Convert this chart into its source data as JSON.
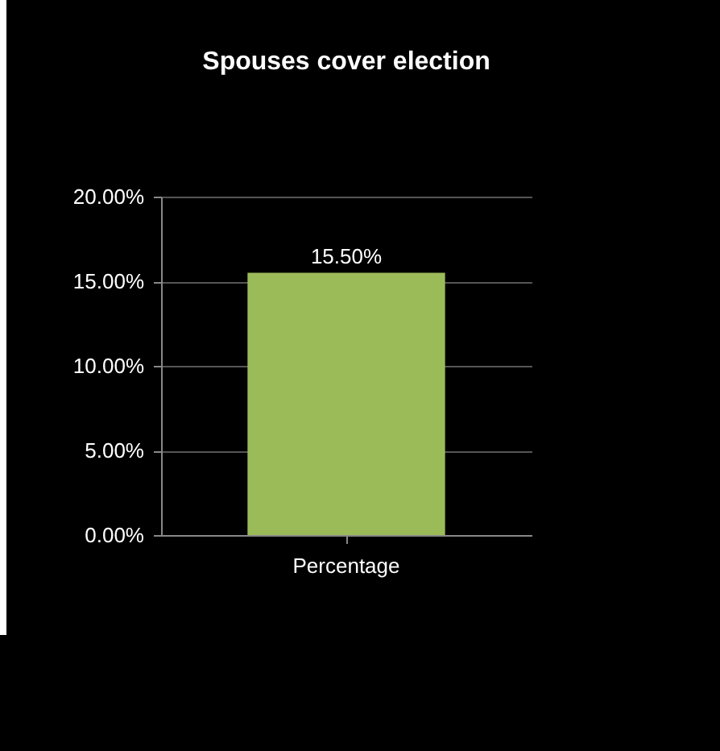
{
  "chart_data": {
    "type": "bar",
    "title": "Spouses cover election",
    "categories": [
      "Percentage"
    ],
    "values": [
      15.5
    ],
    "color": "#9bbb59",
    "value_labels": [
      "15.50%"
    ],
    "ylim": [
      0,
      20
    ],
    "yticks": [
      {
        "value": 0,
        "label": "0.00%"
      },
      {
        "value": 5,
        "label": "5.00%"
      },
      {
        "value": 10,
        "label": "10.00%"
      },
      {
        "value": 15,
        "label": "15.00%"
      },
      {
        "value": 20,
        "label": "20.00%"
      }
    ],
    "grid": "y"
  }
}
